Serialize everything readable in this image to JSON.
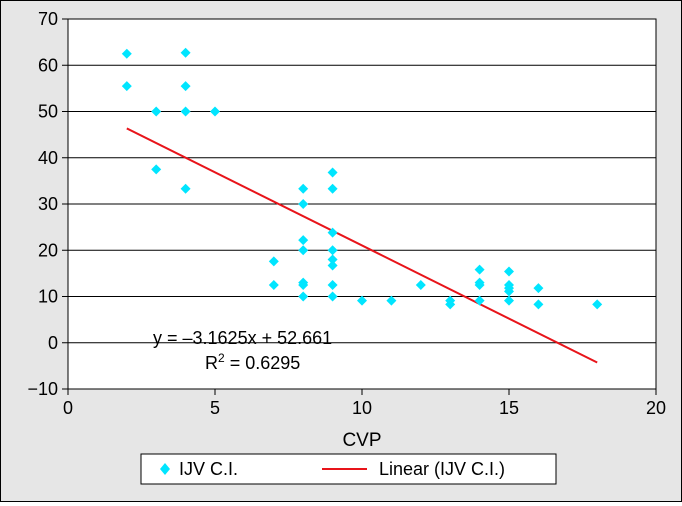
{
  "chart_data": {
    "type": "scatter",
    "title": "",
    "xlabel": "CVP",
    "ylabel": "",
    "xlim": [
      0,
      20
    ],
    "ylim": [
      -10,
      70
    ],
    "x_ticks": [
      0,
      5,
      10,
      15,
      20
    ],
    "y_ticks": [
      -10,
      0,
      10,
      20,
      30,
      40,
      50,
      60,
      70
    ],
    "grid": "horizontal",
    "legend_position": "bottom",
    "series": [
      {
        "name": "IJV C.I.",
        "color": "#00e5ff",
        "marker": "diamond",
        "points": [
          [
            2,
            62.5
          ],
          [
            2,
            55.5
          ],
          [
            3,
            50
          ],
          [
            3,
            37.5
          ],
          [
            4,
            62.7
          ],
          [
            4,
            55.5
          ],
          [
            4,
            50
          ],
          [
            4,
            33.3
          ],
          [
            5,
            50
          ],
          [
            7,
            17.6
          ],
          [
            7,
            12.5
          ],
          [
            8,
            33.3
          ],
          [
            8,
            30
          ],
          [
            8,
            22.2
          ],
          [
            8,
            20
          ],
          [
            8,
            13
          ],
          [
            8,
            12.5
          ],
          [
            8,
            10
          ],
          [
            9,
            36.8
          ],
          [
            9,
            33.3
          ],
          [
            9,
            23.8
          ],
          [
            9,
            20
          ],
          [
            9,
            18
          ],
          [
            9,
            16.7
          ],
          [
            9,
            12.5
          ],
          [
            9,
            10
          ],
          [
            10,
            9.1
          ],
          [
            11,
            9.1
          ],
          [
            12,
            12.5
          ],
          [
            13,
            9.1
          ],
          [
            13,
            8.3
          ],
          [
            14,
            15.8
          ],
          [
            14,
            13
          ],
          [
            14,
            12.5
          ],
          [
            14,
            9.1
          ],
          [
            15,
            15.4
          ],
          [
            15,
            12.5
          ],
          [
            15,
            11.8
          ],
          [
            15,
            11.1
          ],
          [
            15,
            9.1
          ],
          [
            16,
            11.8
          ],
          [
            16,
            8.3
          ],
          [
            18,
            8.3
          ]
        ]
      },
      {
        "name": "Linear (IJV C.I.)",
        "color": "#e8141a",
        "type": "line",
        "x_range": [
          2,
          18
        ],
        "slope": -3.1625,
        "intercept": 52.661
      }
    ],
    "annotations": {
      "equation": "y = –3.1625x + 52.661",
      "r2_prefix": "R",
      "r2_sup": "2",
      "r2_suffix": " = 0.6295"
    }
  }
}
